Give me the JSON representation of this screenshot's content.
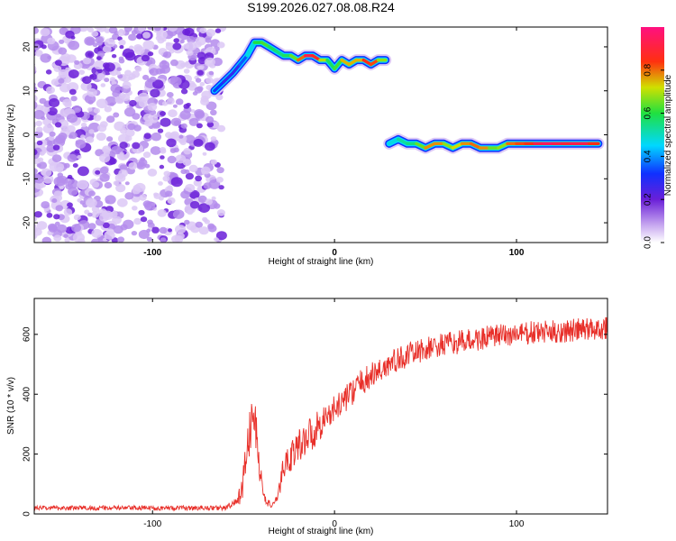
{
  "chart_data": [
    {
      "type": "heatmap",
      "title": "S199.2026.027.08.08.R24",
      "xlabel": "Height of straight line (km)",
      "ylabel": "Frequency (Hz)",
      "xlim": [
        -165,
        150
      ],
      "ylim": [
        -24.5,
        24.5
      ],
      "xticks": [
        -100,
        0,
        100
      ],
      "xtick_labels": [
        "-100",
        "0",
        "100"
      ],
      "yticks": [
        20,
        10,
        0,
        -10,
        -20
      ],
      "ytick_labels": [
        "20",
        "10",
        "0",
        "-10",
        "-20"
      ],
      "colorbar": {
        "label": "Normalized spectral amplitude",
        "ticks": [
          0.0,
          0.2,
          0.4,
          0.6,
          0.8
        ],
        "tick_labels": [
          "0.0",
          "0.2",
          "0.4",
          "0.6",
          "0.8"
        ],
        "range": [
          0,
          1
        ]
      },
      "noise_region": {
        "x": [
          -165,
          -64
        ],
        "y": [
          -24.5,
          24.5
        ],
        "level": 0.08
      },
      "tracks": [
        {
          "name": "upper track",
          "x": [
            -66,
            -61,
            -56,
            -52,
            -48,
            -44,
            -40,
            -36,
            -32,
            -28,
            -24,
            -20,
            -16,
            -12,
            -8,
            -4,
            0,
            4,
            8,
            12,
            16,
            20,
            24,
            28
          ],
          "y": [
            10,
            12,
            14,
            16,
            18,
            21,
            21,
            20,
            19,
            18,
            18,
            17,
            18,
            18,
            17,
            17,
            15,
            17,
            16,
            17,
            17,
            16,
            17,
            17
          ],
          "amplitude": [
            0.35,
            0.3,
            0.25,
            0.3,
            0.4,
            0.55,
            0.65,
            0.6,
            0.55,
            0.55,
            0.6,
            0.7,
            0.9,
            0.95,
            0.8,
            0.6,
            0.55,
            0.7,
            0.8,
            0.7,
            0.8,
            0.9,
            0.75,
            0.6
          ]
        },
        {
          "name": "lower track",
          "x": [
            30,
            35,
            40,
            45,
            50,
            55,
            60,
            65,
            70,
            75,
            80,
            85,
            90,
            95,
            100,
            105,
            110,
            115,
            120,
            125,
            130,
            135,
            140,
            145
          ],
          "y": [
            -2,
            -1,
            -2,
            -2,
            -3,
            -2,
            -2,
            -3,
            -2,
            -2,
            -3,
            -3,
            -3,
            -2,
            -2,
            -2,
            -2,
            -2,
            -2,
            -2,
            -2,
            -2,
            -2,
            -2
          ],
          "amplitude": [
            0.4,
            0.55,
            0.5,
            0.6,
            0.7,
            0.85,
            0.7,
            0.65,
            0.8,
            0.75,
            0.85,
            0.7,
            0.6,
            0.75,
            0.85,
            0.8,
            0.9,
            0.95,
            0.95,
            0.9,
            0.9,
            0.95,
            0.9,
            0.8
          ]
        }
      ]
    },
    {
      "type": "line",
      "xlabel": "Height of straight line (km)",
      "ylabel": "SNR (10 * v/v)",
      "xlim": [
        -165,
        150
      ],
      "ylim": [
        0,
        720
      ],
      "xticks": [
        -100,
        0,
        100
      ],
      "xtick_labels": [
        "-100",
        "0",
        "100"
      ],
      "yticks": [
        0,
        200,
        400,
        600
      ],
      "ytick_labels": [
        "0",
        "200",
        "400",
        "600"
      ],
      "series": [
        {
          "name": "SNR",
          "color": "#e8302a",
          "x": [
            -165,
            -140,
            -110,
            -80,
            -60,
            -53,
            -50,
            -47,
            -45,
            -43,
            -41,
            -39,
            -37,
            -35,
            -33,
            -31,
            -29,
            -27,
            -25,
            -23,
            -21,
            -19,
            -17,
            -15,
            -13,
            -11,
            -9,
            -7,
            -5,
            -3,
            0,
            5,
            10,
            15,
            20,
            25,
            30,
            40,
            50,
            60,
            70,
            80,
            90,
            100,
            110,
            120,
            130,
            140,
            145,
            150
          ],
          "y": [
            20,
            20,
            20,
            20,
            20,
            40,
            120,
            250,
            330,
            280,
            140,
            60,
            40,
            30,
            30,
            60,
            130,
            170,
            190,
            200,
            220,
            230,
            250,
            260,
            270,
            270,
            300,
            310,
            320,
            330,
            350,
            380,
            410,
            440,
            460,
            480,
            500,
            530,
            550,
            565,
            575,
            585,
            595,
            600,
            605,
            608,
            612,
            618,
            620,
            625
          ],
          "noise_amplitude": [
            8,
            8,
            8,
            8,
            8,
            20,
            60,
            80,
            80,
            70,
            50,
            20,
            15,
            10,
            10,
            20,
            40,
            50,
            50,
            55,
            55,
            60,
            60,
            60,
            60,
            55,
            55,
            55,
            50,
            50,
            45,
            45,
            45,
            45,
            45,
            45,
            45,
            40,
            40,
            40,
            40,
            40,
            40,
            40,
            40,
            40,
            40,
            40,
            40,
            40
          ]
        }
      ]
    }
  ]
}
